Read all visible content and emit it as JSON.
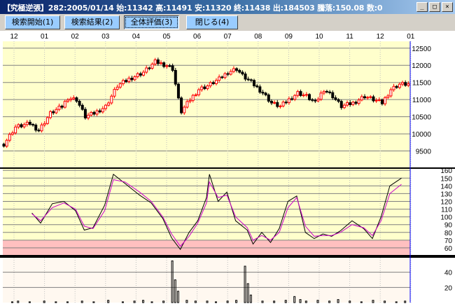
{
  "window": {
    "title": "【究極逆張】282:2005/01/14 始:11342 高:11491 安:11320 終:11438 出:184503 騰落:150.08 数:0",
    "buttons": [
      "_",
      "□",
      "×"
    ]
  },
  "toolbar": {
    "buttons": [
      "検索開始(1)",
      "検索結果(2)",
      "全体評価(3)",
      "閉じる(4)"
    ]
  },
  "colors": {
    "background": "#ffffcc",
    "up": "#ff0000",
    "down": "#000000",
    "indicator_black": "#000000",
    "indicator_magenta": "#cc00cc",
    "zone_fill": "#ffc0c0",
    "cursor": "#0000ff"
  },
  "chart_data": [
    {
      "type": "candlestick",
      "month_labels": [
        "12",
        "01",
        "02",
        "03",
        "04",
        "05",
        "06",
        "07",
        "08",
        "09",
        "10",
        "11",
        "12",
        "01"
      ],
      "y_ticks": [
        9500,
        10000,
        10500,
        11000,
        11500,
        12000,
        12500
      ],
      "ylim": [
        9000,
        12700
      ],
      "close_path": [
        [
          0,
          9700
        ],
        [
          4,
          10200
        ],
        [
          9,
          10300
        ],
        [
          12,
          10100
        ],
        [
          16,
          10600
        ],
        [
          20,
          10800
        ],
        [
          22,
          11050
        ],
        [
          25,
          11000
        ],
        [
          28,
          10500
        ],
        [
          31,
          10600
        ],
        [
          35,
          10800
        ],
        [
          39,
          11400
        ],
        [
          43,
          11600
        ],
        [
          48,
          11800
        ],
        [
          52,
          12100
        ],
        [
          56,
          12000
        ],
        [
          58,
          11900
        ],
        [
          60,
          11000
        ],
        [
          61,
          10650
        ],
        [
          64,
          11000
        ],
        [
          67,
          11300
        ],
        [
          70,
          11400
        ],
        [
          74,
          11600
        ],
        [
          77,
          11800
        ],
        [
          80,
          11900
        ],
        [
          82,
          11700
        ],
        [
          85,
          11500
        ],
        [
          89,
          11200
        ],
        [
          92,
          10900
        ],
        [
          95,
          10800
        ],
        [
          98,
          11000
        ],
        [
          101,
          11200
        ],
        [
          104,
          11100
        ],
        [
          107,
          10900
        ],
        [
          110,
          11300
        ],
        [
          113,
          11100
        ],
        [
          116,
          10800
        ],
        [
          120,
          10900
        ],
        [
          124,
          11100
        ],
        [
          127,
          11000
        ],
        [
          130,
          10900
        ],
        [
          133,
          11300
        ],
        [
          136,
          11450
        ],
        [
          139,
          11450
        ]
      ]
    },
    {
      "type": "line",
      "y_ticks": [
        60,
        70,
        80,
        90,
        100,
        110,
        120,
        130,
        140,
        150,
        160
      ],
      "ylim": [
        50,
        162
      ],
      "zone": [
        50,
        70
      ],
      "series": [
        {
          "values": [
            [
              10,
              105
            ],
            [
              13,
              92
            ],
            [
              17,
              117
            ],
            [
              21,
              120
            ],
            [
              25,
              108
            ],
            [
              28,
              83
            ],
            [
              31,
              86
            ],
            [
              35,
              115
            ],
            [
              38,
              155
            ],
            [
              42,
              143
            ],
            [
              47,
              128
            ],
            [
              51,
              118
            ],
            [
              55,
              98
            ],
            [
              58,
              73
            ],
            [
              61,
              58
            ],
            [
              64,
              80
            ],
            [
              67,
              95
            ],
            [
              70,
              125
            ],
            [
              71,
              155
            ],
            [
              74,
              120
            ],
            [
              77,
              132
            ],
            [
              80,
              95
            ],
            [
              84,
              83
            ],
            [
              86,
              65
            ],
            [
              89,
              80
            ],
            [
              92,
              67
            ],
            [
              95,
              85
            ],
            [
              98,
              120
            ],
            [
              101,
              127
            ],
            [
              104,
              80
            ],
            [
              107,
              72
            ],
            [
              110,
              78
            ],
            [
              113,
              75
            ],
            [
              116,
              82
            ],
            [
              120,
              95
            ],
            [
              124,
              85
            ],
            [
              127,
              72
            ],
            [
              130,
              100
            ],
            [
              133,
              140
            ],
            [
              137,
              150
            ]
          ]
        },
        {
          "values": [
            [
              10,
              104
            ],
            [
              13,
              95
            ],
            [
              17,
              112
            ],
            [
              21,
              118
            ],
            [
              25,
              110
            ],
            [
              28,
              88
            ],
            [
              31,
              85
            ],
            [
              35,
              108
            ],
            [
              38,
              148
            ],
            [
              42,
              145
            ],
            [
              47,
              132
            ],
            [
              51,
              120
            ],
            [
              55,
              100
            ],
            [
              58,
              78
            ],
            [
              61,
              62
            ],
            [
              64,
              75
            ],
            [
              67,
              92
            ],
            [
              70,
              118
            ],
            [
              71,
              145
            ],
            [
              74,
              125
            ],
            [
              77,
              128
            ],
            [
              80,
              100
            ],
            [
              84,
              86
            ],
            [
              86,
              70
            ],
            [
              89,
              76
            ],
            [
              92,
              70
            ],
            [
              95,
              80
            ],
            [
              98,
              112
            ],
            [
              101,
              125
            ],
            [
              104,
              88
            ],
            [
              107,
              75
            ],
            [
              110,
              76
            ],
            [
              113,
              76
            ],
            [
              116,
              80
            ],
            [
              120,
              90
            ],
            [
              124,
              86
            ],
            [
              127,
              76
            ],
            [
              130,
              95
            ],
            [
              133,
              130
            ],
            [
              137,
              142
            ]
          ]
        }
      ]
    },
    {
      "type": "bar",
      "y_ticks": [
        20,
        40
      ],
      "ylim": [
        0,
        60
      ],
      "values": [
        [
          3,
          1
        ],
        [
          5,
          2
        ],
        [
          9,
          1
        ],
        [
          14,
          2
        ],
        [
          18,
          1
        ],
        [
          22,
          1
        ],
        [
          27,
          2
        ],
        [
          31,
          1
        ],
        [
          36,
          3
        ],
        [
          41,
          1
        ],
        [
          45,
          2
        ],
        [
          48,
          3
        ],
        [
          51,
          1
        ],
        [
          55,
          2
        ],
        [
          58,
          55
        ],
        [
          59,
          30
        ],
        [
          60,
          15
        ],
        [
          63,
          3
        ],
        [
          66,
          2
        ],
        [
          70,
          2
        ],
        [
          73,
          1
        ],
        [
          77,
          2
        ],
        [
          80,
          3
        ],
        [
          83,
          48
        ],
        [
          84,
          25
        ],
        [
          85,
          10
        ],
        [
          89,
          2
        ],
        [
          93,
          2
        ],
        [
          97,
          3
        ],
        [
          100,
          8
        ],
        [
          102,
          4
        ],
        [
          104,
          2
        ],
        [
          108,
          3
        ],
        [
          112,
          2
        ],
        [
          115,
          4
        ],
        [
          119,
          2
        ],
        [
          123,
          1
        ],
        [
          127,
          3
        ],
        [
          131,
          2
        ],
        [
          135,
          1
        ],
        [
          138,
          2
        ]
      ]
    }
  ]
}
